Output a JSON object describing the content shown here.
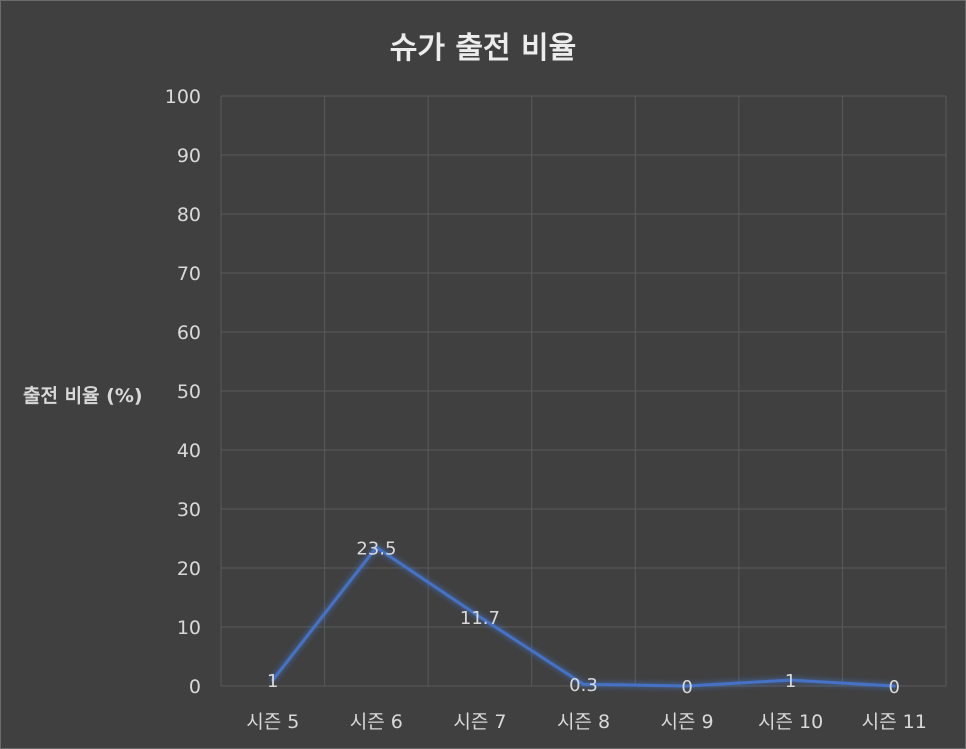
{
  "chart_data": {
    "type": "line",
    "title": "슈가 출전 비율",
    "ylabel": "출전 비율 (%)",
    "xlabel": "",
    "categories": [
      "시즌 5",
      "시즌 6",
      "시즌 7",
      "시즌 8",
      "시즌 9",
      "시즌 10",
      "시즌 11"
    ],
    "series": [
      {
        "values": [
          1,
          23.5,
          11.7,
          0.3,
          0,
          1,
          0
        ],
        "data_labels": [
          "1",
          "23.5",
          "11.7",
          "0.3",
          "0",
          "1",
          "0"
        ],
        "color": "#4472c4"
      }
    ],
    "ylim": [
      0,
      100
    ],
    "yticks": [
      "0",
      "10",
      "20",
      "30",
      "40",
      "50",
      "60",
      "70",
      "80",
      "90",
      "100"
    ],
    "grid": true,
    "legend": "none"
  },
  "colors": {
    "background": "#404040",
    "grid": "#5a5a5a",
    "text": "#d9d9d9",
    "line": "#4472c4"
  }
}
